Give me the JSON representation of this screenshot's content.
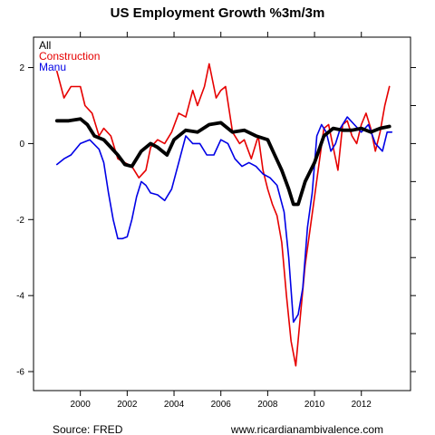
{
  "chart_data": {
    "type": "line",
    "title": "US Employment Growth %3m/3m",
    "xlabel": "",
    "ylabel": "",
    "xlim": [
      1998.0,
      2014.1
    ],
    "ylim": [
      -6.5,
      2.8
    ],
    "x_ticks": [
      2000,
      2002,
      2004,
      2006,
      2008,
      2010,
      2012
    ],
    "x_tick_labels": [
      "2000",
      "2002",
      "2004",
      "2006",
      "2008",
      "2010",
      "2012"
    ],
    "y_ticks": [
      2,
      0,
      -2,
      -4,
      -6
    ],
    "y_tick_labels": [
      "2",
      "0",
      "-2",
      "-4",
      "-6"
    ],
    "grid": false,
    "legend_position": "top-left",
    "series": [
      {
        "name": "All",
        "color": "#000000",
        "x": [
          1999.0,
          1999.5,
          2000.0,
          2000.3,
          2000.6,
          2001.0,
          2001.3,
          2001.6,
          2001.9,
          2002.2,
          2002.6,
          2003.0,
          2003.3,
          2003.7,
          2004.0,
          2004.5,
          2005.0,
          2005.5,
          2006.0,
          2006.5,
          2007.0,
          2007.5,
          2008.0,
          2008.3,
          2008.6,
          2008.9,
          2009.1,
          2009.3,
          2009.6,
          2010.0,
          2010.4,
          2010.8,
          2011.2,
          2011.6,
          2012.0,
          2012.4,
          2012.8,
          2013.2
        ],
        "y": [
          0.6,
          0.6,
          0.65,
          0.5,
          0.2,
          0.1,
          -0.1,
          -0.3,
          -0.55,
          -0.6,
          -0.2,
          0.0,
          -0.1,
          -0.3,
          0.1,
          0.35,
          0.3,
          0.5,
          0.55,
          0.3,
          0.35,
          0.2,
          0.1,
          -0.3,
          -0.7,
          -1.2,
          -1.6,
          -1.6,
          -1.0,
          -0.5,
          0.2,
          0.4,
          0.35,
          0.35,
          0.4,
          0.3,
          0.4,
          0.45
        ]
      },
      {
        "name": "Construction",
        "color": "#e60000",
        "x": [
          1999.0,
          1999.3,
          1999.6,
          2000.0,
          2000.2,
          2000.5,
          2000.8,
          2001.0,
          2001.3,
          2001.6,
          2001.9,
          2002.2,
          2002.5,
          2002.8,
          2003.0,
          2003.3,
          2003.6,
          2003.9,
          2004.2,
          2004.5,
          2004.8,
          2005.0,
          2005.3,
          2005.5,
          2005.8,
          2006.0,
          2006.2,
          2006.5,
          2006.8,
          2007.0,
          2007.3,
          2007.6,
          2007.8,
          2008.0,
          2008.2,
          2008.4,
          2008.6,
          2008.8,
          2009.0,
          2009.2,
          2009.4,
          2009.6,
          2009.8,
          2010.0,
          2010.2,
          2010.4,
          2010.6,
          2010.8,
          2011.0,
          2011.2,
          2011.4,
          2011.6,
          2011.8,
          2012.0,
          2012.2,
          2012.4,
          2012.6,
          2012.8,
          2013.0,
          2013.2
        ],
        "y": [
          1.9,
          1.2,
          1.5,
          1.5,
          1.0,
          0.8,
          0.2,
          0.4,
          0.2,
          -0.4,
          -0.5,
          -0.6,
          -0.9,
          -0.7,
          -0.1,
          0.1,
          0.0,
          0.3,
          0.8,
          0.7,
          1.4,
          1.0,
          1.5,
          2.1,
          1.2,
          1.4,
          1.5,
          0.3,
          0.0,
          0.1,
          -0.4,
          0.2,
          -0.7,
          -1.2,
          -1.6,
          -1.9,
          -2.6,
          -4.0,
          -5.2,
          -5.85,
          -4.5,
          -3.2,
          -2.3,
          -1.4,
          -0.5,
          0.4,
          0.5,
          -0.1,
          -0.7,
          0.5,
          0.6,
          0.2,
          0.0,
          0.5,
          0.8,
          0.4,
          -0.2,
          0.3,
          1.0,
          1.5
        ]
      },
      {
        "name": "Manu",
        "color": "#0000e6",
        "x": [
          1999.0,
          1999.3,
          1999.6,
          2000.0,
          2000.4,
          2000.8,
          2001.0,
          2001.2,
          2001.4,
          2001.6,
          2001.8,
          2002.0,
          2002.2,
          2002.4,
          2002.6,
          2002.8,
          2003.0,
          2003.3,
          2003.6,
          2003.9,
          2004.2,
          2004.5,
          2004.8,
          2005.1,
          2005.4,
          2005.7,
          2006.0,
          2006.3,
          2006.6,
          2006.9,
          2007.2,
          2007.5,
          2007.8,
          2008.1,
          2008.4,
          2008.7,
          2008.9,
          2009.1,
          2009.3,
          2009.5,
          2009.7,
          2009.9,
          2010.1,
          2010.3,
          2010.5,
          2010.7,
          2010.9,
          2011.1,
          2011.4,
          2011.7,
          2012.0,
          2012.3,
          2012.6,
          2012.9,
          2013.1,
          2013.3
        ],
        "y": [
          -0.55,
          -0.4,
          -0.3,
          0.0,
          0.1,
          -0.15,
          -0.5,
          -1.3,
          -2.0,
          -2.5,
          -2.5,
          -2.45,
          -2.0,
          -1.4,
          -1.0,
          -1.1,
          -1.3,
          -1.35,
          -1.5,
          -1.2,
          -0.5,
          0.2,
          0.0,
          0.0,
          -0.3,
          -0.3,
          0.1,
          0.0,
          -0.4,
          -0.6,
          -0.5,
          -0.6,
          -0.8,
          -0.9,
          -1.1,
          -1.8,
          -3.0,
          -4.7,
          -4.5,
          -3.8,
          -2.2,
          -1.3,
          0.2,
          0.5,
          0.3,
          -0.2,
          0.0,
          0.4,
          0.7,
          0.5,
          0.3,
          0.5,
          0.0,
          -0.2,
          0.3,
          0.3
        ]
      }
    ]
  },
  "footer": {
    "source": "Source: FRED",
    "website": "www.ricardianambivalence.com"
  }
}
